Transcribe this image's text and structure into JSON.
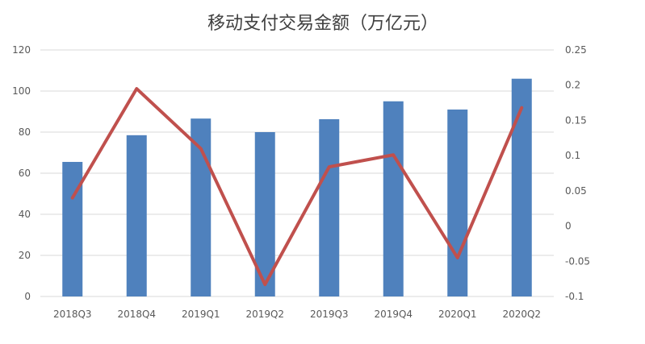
{
  "chart_data": {
    "type": "bar",
    "title": "移动支付交易金额（万亿元）",
    "categories": [
      "2018Q3",
      "2018Q4",
      "2019Q1",
      "2019Q2",
      "2019Q3",
      "2019Q4",
      "2020Q1",
      "2020Q2"
    ],
    "series": [
      {
        "type": "bar",
        "axis": "left",
        "color": "#4f81bd",
        "values": [
          65.5,
          78.5,
          86.6,
          80.0,
          86.3,
          95.0,
          91.0,
          106.0
        ]
      },
      {
        "type": "line",
        "axis": "right",
        "color": "#c0504d",
        "values": [
          0.04,
          0.195,
          0.11,
          -0.083,
          0.084,
          0.101,
          -0.045,
          0.168
        ]
      }
    ],
    "y_left": {
      "min": 0,
      "max": 120,
      "ticks": [
        "0",
        "20",
        "40",
        "60",
        "80",
        "100",
        "120"
      ]
    },
    "y_right": {
      "min": -0.1,
      "max": 0.25,
      "ticks": [
        "-0.1",
        "-0.05",
        "0",
        "0.05",
        "0.1",
        "0.15",
        "0.2",
        "0.25"
      ]
    },
    "grid": true,
    "legend": "none"
  }
}
